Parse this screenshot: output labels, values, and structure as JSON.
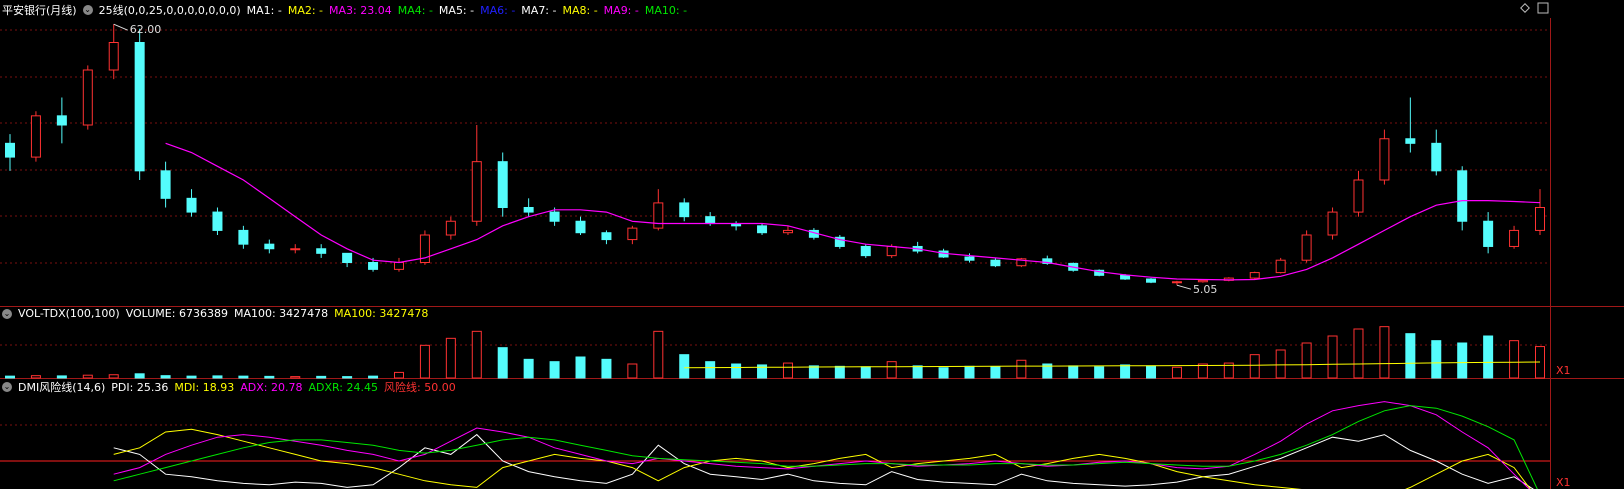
{
  "price_panel": {
    "type": "candlestick",
    "title": "平安银行(月线)",
    "indicator": "25线(0,0,25,0,0,0,0,0,0,0)",
    "ma_labels": [
      {
        "text": "MA1: -",
        "color": "#ffffff"
      },
      {
        "text": "MA2: -",
        "color": "#ffff00"
      },
      {
        "text": "MA3: 23.04",
        "color": "#ff00ff"
      },
      {
        "text": "MA4: -",
        "color": "#00e600"
      },
      {
        "text": "MA5: -",
        "color": "#ffffff"
      },
      {
        "text": "MA6: -",
        "color": "#2020ff"
      },
      {
        "text": "MA7: -",
        "color": "#ffffff"
      },
      {
        "text": "MA8: -",
        "color": "#ffff00"
      },
      {
        "text": "MA9: -",
        "color": "#ff00ff"
      },
      {
        "text": "MA10: -",
        "color": "#00e600"
      }
    ],
    "ylim": [
      4,
      64
    ],
    "up_color": "#ff3232",
    "down_color": "#54fcfc",
    "high_label": "62.00",
    "low_label": "5.05",
    "candles": [
      [
        36,
        38,
        30,
        33
      ],
      [
        33,
        43,
        32,
        42
      ],
      [
        42,
        46,
        36,
        40
      ],
      [
        40,
        53,
        39,
        52
      ],
      [
        52,
        62,
        50,
        58
      ],
      [
        58,
        61,
        28,
        30
      ],
      [
        30,
        32,
        22,
        24
      ],
      [
        24,
        26,
        20,
        21
      ],
      [
        21,
        22,
        16,
        17
      ],
      [
        17,
        18,
        13,
        14
      ],
      [
        14,
        15,
        12,
        13
      ],
      [
        13,
        14,
        12,
        13
      ],
      [
        13,
        14,
        11,
        12
      ],
      [
        12,
        12,
        9,
        10
      ],
      [
        10,
        11,
        8,
        8.5
      ],
      [
        8.5,
        11,
        8,
        10
      ],
      [
        10,
        17,
        9.5,
        16
      ],
      [
        16,
        20,
        15,
        19
      ],
      [
        19,
        40,
        18,
        32
      ],
      [
        32,
        34,
        20,
        22
      ],
      [
        22,
        24,
        20,
        21
      ],
      [
        21,
        22,
        18,
        19
      ],
      [
        19,
        20,
        16,
        16.5
      ],
      [
        16.5,
        17,
        14,
        15
      ],
      [
        15,
        18,
        14,
        17.5
      ],
      [
        17.5,
        26,
        17,
        23
      ],
      [
        23,
        24,
        19,
        20
      ],
      [
        20,
        21,
        18,
        18.5
      ],
      [
        18.5,
        19,
        17,
        18
      ],
      [
        18,
        18.5,
        16,
        16.5
      ],
      [
        16.5,
        18,
        16,
        17
      ],
      [
        17,
        17.5,
        15,
        15.5
      ],
      [
        15.5,
        16,
        13,
        13.5
      ],
      [
        13.5,
        14,
        11,
        11.5
      ],
      [
        11.5,
        14,
        11,
        13.5
      ],
      [
        13.5,
        14.5,
        12,
        12.5
      ],
      [
        12.5,
        13,
        11,
        11.2
      ],
      [
        11.2,
        12,
        10,
        10.5
      ],
      [
        10.5,
        11,
        9,
        9.3
      ],
      [
        9.3,
        11,
        9,
        10.8
      ],
      [
        10.8,
        11.5,
        9.5,
        9.8
      ],
      [
        9.8,
        10,
        8,
        8.3
      ],
      [
        8.3,
        8.5,
        7,
        7.2
      ],
      [
        7.2,
        7.5,
        6.2,
        6.4
      ],
      [
        6.4,
        6.6,
        5.5,
        5.7
      ],
      [
        5.7,
        6,
        5.05,
        5.8
      ],
      [
        5.8,
        6.3,
        5.6,
        6.1
      ],
      [
        6.1,
        6.8,
        5.9,
        6.6
      ],
      [
        6.6,
        8,
        6.4,
        7.8
      ],
      [
        7.8,
        11,
        7.6,
        10.5
      ],
      [
        10.5,
        17,
        10,
        16
      ],
      [
        16,
        22,
        15,
        21
      ],
      [
        21,
        30,
        20,
        28
      ],
      [
        28,
        39,
        27,
        37
      ],
      [
        37,
        46,
        34,
        36
      ],
      [
        36,
        39,
        29,
        30
      ],
      [
        30,
        31,
        17,
        19
      ],
      [
        19,
        21,
        12,
        13.5
      ],
      [
        13.5,
        18,
        13,
        17
      ],
      [
        17,
        26,
        16,
        22
      ]
    ],
    "ma": {
      "color": "#ff00ff",
      "values": [
        null,
        null,
        null,
        null,
        null,
        null,
        36,
        34,
        31,
        28,
        24,
        20,
        16,
        13,
        10.5,
        10,
        11,
        13,
        15,
        18,
        20,
        21.5,
        21.5,
        21,
        19,
        18.5,
        18.5,
        18.5,
        18.5,
        18.5,
        18,
        16.5,
        15,
        14,
        13.5,
        13,
        12,
        11.5,
        11,
        10.5,
        10,
        9,
        8,
        7.3,
        6.8,
        6.4,
        6.3,
        6.2,
        6.3,
        7,
        8.5,
        11,
        14,
        17,
        20,
        22.5,
        23.5,
        23.5,
        23.3,
        23.04
      ]
    }
  },
  "volume_panel": {
    "title": "VOL-TDX(100,100)",
    "labels": [
      {
        "text": "VOLUME: 6736389",
        "color": "#ffffff"
      },
      {
        "text": "MA100: 3427478",
        "color": "#ffffff"
      },
      {
        "text": "MA100: 3427478",
        "color": "#ffff00"
      }
    ],
    "ylim": [
      0,
      12000000
    ],
    "scale_label": "X1",
    "values": [
      400000,
      500000,
      450000,
      600000,
      700000,
      900000,
      500000,
      400000,
      450000,
      400000,
      350000,
      300000,
      350000,
      300000,
      400000,
      1200000,
      7000000,
      8500000,
      10000000,
      6500000,
      4000000,
      3500000,
      4500000,
      4000000,
      3000000,
      10000000,
      5000000,
      3500000,
      3000000,
      2800000,
      3200000,
      2600000,
      2500000,
      2400000,
      3500000,
      2600000,
      2200000,
      2500000,
      2400000,
      3800000,
      3000000,
      2600000,
      2400000,
      2800000,
      2600000,
      2300000,
      3000000,
      3200000,
      5000000,
      6000000,
      7500000,
      9000000,
      10500000,
      11000000,
      9500000,
      8000000,
      7500000,
      9000000,
      8000000,
      6736389
    ],
    "ma": {
      "color": "#ffff00",
      "values": [
        null,
        null,
        null,
        null,
        null,
        null,
        null,
        null,
        null,
        null,
        null,
        null,
        null,
        null,
        null,
        null,
        null,
        null,
        null,
        null,
        null,
        null,
        null,
        null,
        null,
        null,
        2200000,
        2230000,
        2260000,
        2290000,
        2320000,
        2350000,
        2380000,
        2400000,
        2430000,
        2450000,
        2470000,
        2490000,
        2510000,
        2540000,
        2560000,
        2580000,
        2600000,
        2620000,
        2640000,
        2660000,
        2680000,
        2710000,
        2750000,
        2800000,
        2860000,
        2930000,
        3000000,
        3080000,
        3160000,
        3230000,
        3290000,
        3340000,
        3390000,
        3427478
      ]
    }
  },
  "dmi_panel": {
    "title": "DMI风险线(14,6)",
    "labels": [
      {
        "text": "PDI: 25.36",
        "color": "#ffffff"
      },
      {
        "text": "MDI: 18.93",
        "color": "#ffff00"
      },
      {
        "text": "ADX: 20.78",
        "color": "#ff00ff"
      },
      {
        "text": "ADXR: 24.45",
        "color": "#00e600"
      },
      {
        "text": "风险线: 50.00",
        "color": "#ff3232"
      }
    ],
    "ylim": [
      0,
      100
    ],
    "risk": {
      "value": 50,
      "color": "#ff2020"
    },
    "scale_label": "X1",
    "series": [
      {
        "name": "PDI",
        "color": "#ffffff",
        "values": [
          null,
          null,
          null,
          null,
          60,
          55,
          40,
          38,
          35,
          33,
          32,
          34,
          33,
          30,
          32,
          45,
          60,
          55,
          70,
          50,
          42,
          38,
          35,
          33,
          40,
          62,
          48,
          40,
          38,
          36,
          40,
          35,
          33,
          32,
          42,
          36,
          34,
          33,
          32,
          40,
          35,
          33,
          32,
          31,
          32,
          34,
          38,
          40,
          46,
          52,
          60,
          68,
          65,
          70,
          58,
          50,
          40,
          33,
          38,
          25.36
        ]
      },
      {
        "name": "MDI",
        "color": "#ffff00",
        "values": [
          null,
          null,
          null,
          null,
          55,
          60,
          72,
          74,
          70,
          65,
          60,
          55,
          50,
          48,
          45,
          40,
          35,
          32,
          30,
          45,
          50,
          55,
          52,
          50,
          45,
          35,
          45,
          50,
          52,
          50,
          45,
          48,
          52,
          55,
          45,
          48,
          50,
          52,
          55,
          45,
          48,
          52,
          55,
          52,
          48,
          42,
          38,
          35,
          32,
          30,
          28,
          25,
          24,
          22,
          30,
          40,
          50,
          55,
          45,
          18.93
        ]
      },
      {
        "name": "ADX",
        "color": "#ff00ff",
        "values": [
          null,
          null,
          null,
          null,
          40,
          45,
          55,
          62,
          68,
          70,
          68,
          65,
          62,
          58,
          55,
          50,
          55,
          65,
          75,
          72,
          68,
          60,
          55,
          50,
          48,
          52,
          50,
          48,
          46,
          45,
          44,
          46,
          48,
          50,
          48,
          46,
          47,
          48,
          50,
          48,
          46,
          47,
          49,
          50,
          48,
          45,
          44,
          46,
          55,
          65,
          78,
          88,
          92,
          95,
          92,
          85,
          72,
          60,
          40,
          20.78
        ]
      },
      {
        "name": "ADXR",
        "color": "#00e600",
        "values": [
          null,
          null,
          null,
          null,
          35,
          40,
          45,
          50,
          55,
          60,
          64,
          66,
          66,
          64,
          62,
          58,
          56,
          58,
          62,
          66,
          68,
          66,
          62,
          58,
          54,
          52,
          51,
          50,
          49,
          48,
          46,
          46,
          47,
          48,
          48,
          47,
          47,
          47,
          48,
          48,
          47,
          47,
          48,
          49,
          48,
          47,
          46,
          46,
          50,
          55,
          62,
          70,
          80,
          88,
          92,
          90,
          84,
          76,
          66,
          24.45
        ]
      }
    ]
  }
}
